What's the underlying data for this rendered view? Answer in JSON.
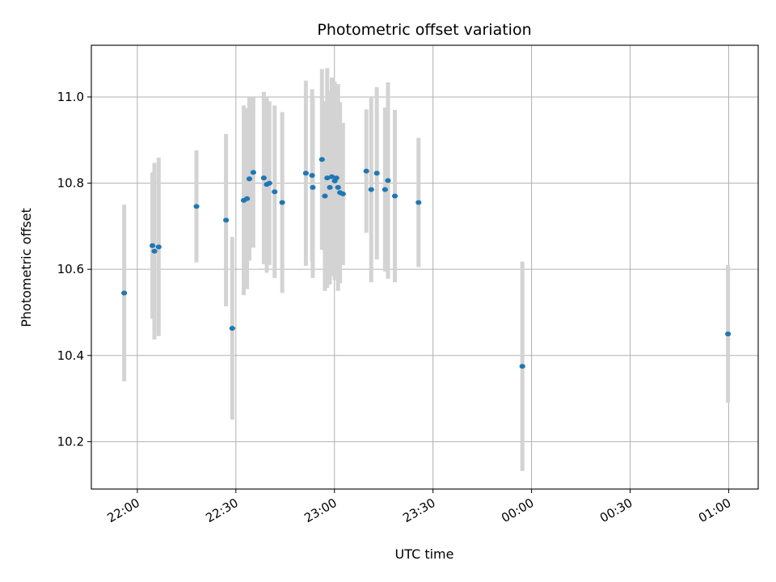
{
  "chart_data": {
    "type": "scatter",
    "title": "Photometric offset variation",
    "xlabel": "UTC time",
    "ylabel": "Photometric offset",
    "x_is_time": true,
    "xlim": [
      "21:46",
      "01:09"
    ],
    "ylim": [
      10.09,
      11.12
    ],
    "grid": true,
    "x_ticks": [
      "22:00",
      "22:30",
      "23:00",
      "23:30",
      "00:00",
      "00:30",
      "01:00"
    ],
    "y_ticks": [
      10.2,
      10.4,
      10.6,
      10.8,
      11.0
    ],
    "y_tick_labels": [
      "10.2",
      "10.4",
      "10.6",
      "10.8",
      "11.0"
    ],
    "point_color": "#1f77b4",
    "errorbar_color": "#d3d3d3",
    "points": [
      {
        "x": "21:56",
        "y": 10.545,
        "err": 0.205
      },
      {
        "x": "22:04.6",
        "y": 10.655,
        "err": 0.17
      },
      {
        "x": "22:05.2",
        "y": 10.642,
        "err": 0.205
      },
      {
        "x": "22:06.5",
        "y": 10.652,
        "err": 0.207
      },
      {
        "x": "22:18",
        "y": 10.746,
        "err": 0.13
      },
      {
        "x": "22:27",
        "y": 10.714,
        "err": 0.2
      },
      {
        "x": "22:28.9",
        "y": 10.463,
        "err": 0.212
      },
      {
        "x": "22:32.4",
        "y": 10.76,
        "err": 0.22
      },
      {
        "x": "22:33.4",
        "y": 10.764,
        "err": 0.21
      },
      {
        "x": "22:34.1",
        "y": 10.81,
        "err": 0.19
      },
      {
        "x": "22:35.3",
        "y": 10.825,
        "err": 0.175
      },
      {
        "x": "22:38.5",
        "y": 10.812,
        "err": 0.2
      },
      {
        "x": "22:39.4",
        "y": 10.797,
        "err": 0.205
      },
      {
        "x": "22:40.2",
        "y": 10.8,
        "err": 0.19
      },
      {
        "x": "22:41.8",
        "y": 10.78,
        "err": 0.2
      },
      {
        "x": "22:44.1",
        "y": 10.755,
        "err": 0.21
      },
      {
        "x": "22:51.3",
        "y": 10.823,
        "err": 0.215
      },
      {
        "x": "22:53.2",
        "y": 10.818,
        "err": 0.2
      },
      {
        "x": "22:53.4",
        "y": 10.79,
        "err": 0.21
      },
      {
        "x": "22:56.2",
        "y": 10.855,
        "err": 0.21
      },
      {
        "x": "22:57.1",
        "y": 10.77,
        "err": 0.22
      },
      {
        "x": "22:57.8",
        "y": 10.812,
        "err": 0.255
      },
      {
        "x": "22:58.6",
        "y": 10.79,
        "err": 0.225
      },
      {
        "x": "22:59.2",
        "y": 10.815,
        "err": 0.23
      },
      {
        "x": "23:00.1",
        "y": 10.805,
        "err": 0.23
      },
      {
        "x": "23:00.6",
        "y": 10.812,
        "err": 0.21
      },
      {
        "x": "23:01.1",
        "y": 10.79,
        "err": 0.24
      },
      {
        "x": "23:01.7",
        "y": 10.778,
        "err": 0.21
      },
      {
        "x": "23:02.6",
        "y": 10.775,
        "err": 0.165
      },
      {
        "x": "23:09.7",
        "y": 10.828,
        "err": 0.143
      },
      {
        "x": "23:11.2",
        "y": 10.785,
        "err": 0.215
      },
      {
        "x": "23:12.9",
        "y": 10.823,
        "err": 0.2
      },
      {
        "x": "23:15.4",
        "y": 10.785,
        "err": 0.19
      },
      {
        "x": "23:16.3",
        "y": 10.806,
        "err": 0.228
      },
      {
        "x": "23:18.4",
        "y": 10.77,
        "err": 0.2
      },
      {
        "x": "23:25.6",
        "y": 10.755,
        "err": 0.15
      },
      {
        "x": "23:57.2",
        "y": 10.375,
        "err": 0.243
      },
      {
        "x": "00:59.8",
        "y": 10.45,
        "err": 0.16
      }
    ]
  }
}
